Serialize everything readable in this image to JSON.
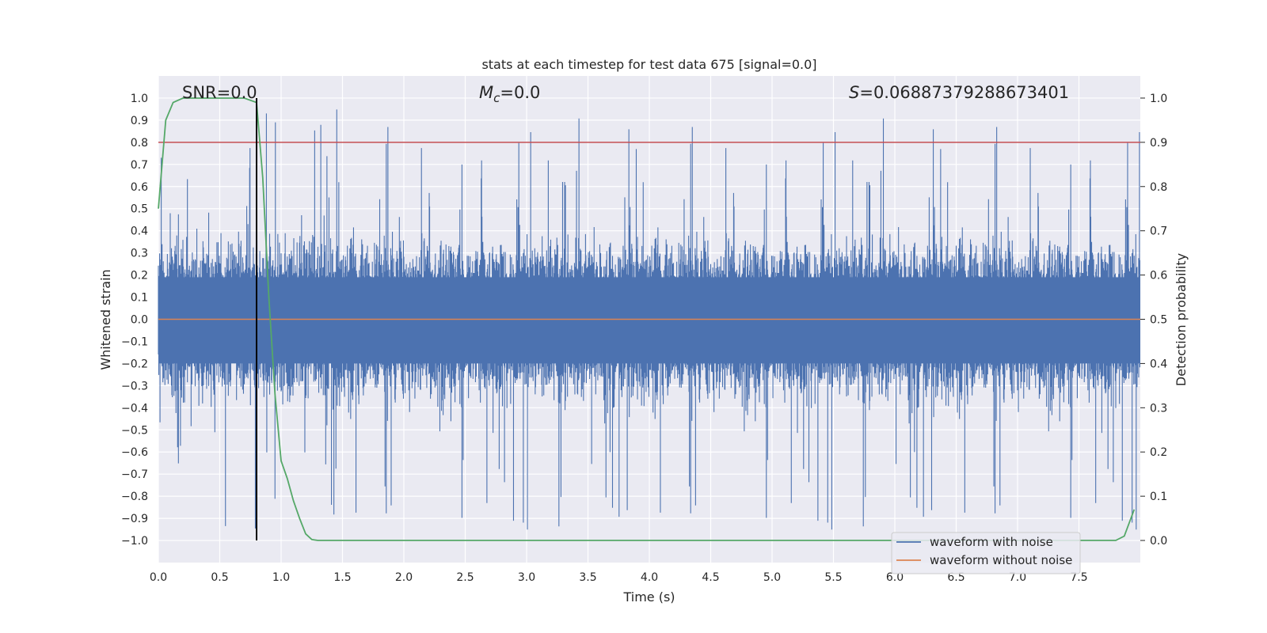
{
  "chart_data": {
    "type": "line",
    "title": "stats at each timestep for test data 675 [signal=0.0]",
    "xlabel": "Time (s)",
    "ylabel_left": "Whitened strain",
    "ylabel_right": "Detection probability",
    "xlim": [
      0.0,
      8.0
    ],
    "ylim_left": [
      -1.1,
      1.1
    ],
    "ylim_right": [
      -0.05,
      1.05
    ],
    "x_ticks": [
      "0.0",
      "0.5",
      "1.0",
      "1.5",
      "2.0",
      "2.5",
      "3.0",
      "3.5",
      "4.0",
      "4.5",
      "5.0",
      "5.5",
      "6.0",
      "6.5",
      "7.0",
      "7.5"
    ],
    "y_ticks_left": [
      "1.0",
      "0.9",
      "0.8",
      "0.7",
      "0.6",
      "0.5",
      "0.4",
      "0.3",
      "0.2",
      "0.1",
      "0.0",
      "−0.1",
      "−0.2",
      "−0.3",
      "−0.4",
      "−0.5",
      "−0.6",
      "−0.7",
      "−0.8",
      "−0.9",
      "−1.0"
    ],
    "y_ticks_right": [
      "1.0",
      "0.9",
      "0.8",
      "0.7",
      "0.6",
      "0.5",
      "0.4",
      "0.3",
      "0.2",
      "0.1",
      "0.0"
    ],
    "grid": true,
    "annotations": {
      "snr_label": "SNR=0.0",
      "mc_symbol": "M",
      "mc_subscript": "c",
      "mc_value": "=0.0",
      "s_symbol": "S",
      "s_value": "=0.06887379288673401"
    },
    "threshold_probability": 0.9,
    "marker_time": 0.8,
    "noise_envelope": {
      "typical_abs": 0.4,
      "max": 0.95,
      "min": -0.97
    },
    "series": [
      {
        "name": "waveform with noise",
        "color": "#4c72b0",
        "axis": "left"
      },
      {
        "name": "waveform without noise",
        "color": "#dd8452",
        "axis": "left",
        "value": 0.0
      },
      {
        "name": "detection probability",
        "color": "#55a868",
        "axis": "right",
        "x": [
          0.0,
          0.06,
          0.12,
          0.2,
          0.3,
          0.5,
          0.7,
          0.8,
          0.85,
          0.9,
          0.95,
          1.0,
          1.05,
          1.1,
          1.15,
          1.2,
          1.25,
          1.3,
          7.5,
          7.8,
          7.87,
          7.95
        ],
        "y": [
          0.75,
          0.95,
          0.99,
          1.0,
          1.0,
          1.0,
          1.0,
          0.99,
          0.82,
          0.55,
          0.33,
          0.18,
          0.14,
          0.09,
          0.05,
          0.015,
          0.002,
          0.0,
          0.0,
          0.0,
          0.01,
          0.07
        ]
      }
    ],
    "legend": {
      "position": "lower-right",
      "entries": [
        {
          "label": "waveform with noise",
          "color": "#4c72b0"
        },
        {
          "label": "waveform without noise",
          "color": "#dd8452"
        }
      ]
    },
    "colors": {
      "background": "#eaeaf2",
      "grid": "#ffffff",
      "threshold": "#c44e52",
      "marker": "#000000",
      "text": "#262626"
    }
  }
}
